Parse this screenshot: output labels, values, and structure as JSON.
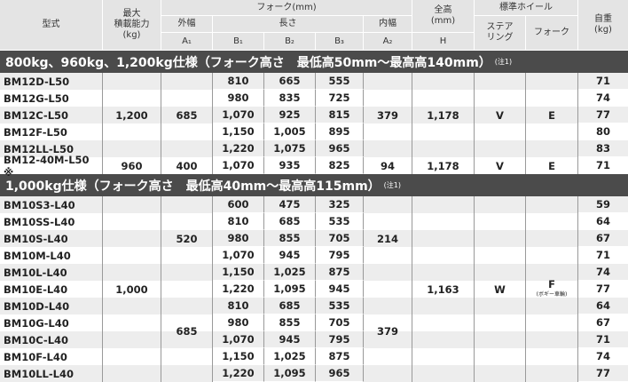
{
  "header": {
    "model": "型式",
    "capacity": "最大\n積載能力\n(kg)",
    "fork": "フォーク(mm)",
    "height": "全高\n(mm)",
    "wheel": "標準ホイール",
    "weight": "自重\n(kg)",
    "outer_width": "外幅",
    "length": "長さ",
    "inner_width": "内幅",
    "steering": "ステア\nリング",
    "fork_wheel": "フォーク",
    "A1": "A₁",
    "B1": "B₁",
    "B2": "B₂",
    "B3": "B₃",
    "A2": "A₂",
    "H": "H"
  },
  "sections": [
    {
      "title": "800kg、960kg、1,200kg仕様（フォーク高さ　最低高50mm～最高高140mm）",
      "note": "(注1)",
      "rows": [
        {
          "model": "BM12D-L50",
          "B1": "810",
          "B2": "665",
          "B3": "555",
          "weight": "71"
        },
        {
          "model": "BM12G-L50",
          "B1": "980",
          "B2": "835",
          "B3": "725",
          "weight": "74"
        },
        {
          "model": "BM12C-L50",
          "B1": "1,070",
          "B2": "925",
          "B3": "815",
          "weight": "77"
        },
        {
          "model": "BM12F-L50",
          "B1": "1,150",
          "B2": "1,005",
          "B3": "895",
          "weight": "80"
        },
        {
          "model": "BM12LL-L50",
          "B1": "1,220",
          "B2": "1,075",
          "B3": "965",
          "weight": "83"
        },
        {
          "model": "BM12-40M-L50 ※",
          "B1": "1,070",
          "B2": "935",
          "B3": "825",
          "weight": "71"
        }
      ],
      "merged": [
        {
          "col": 2,
          "start": 0,
          "span": 5,
          "value": "1,200"
        },
        {
          "col": 3,
          "start": 0,
          "span": 5,
          "value": "685"
        },
        {
          "col": 7,
          "start": 0,
          "span": 5,
          "value": "379"
        },
        {
          "col": 8,
          "start": 0,
          "span": 5,
          "value": "1,178"
        },
        {
          "col": 9,
          "start": 0,
          "span": 5,
          "value": "V"
        },
        {
          "col": 10,
          "start": 0,
          "span": 5,
          "value": "E"
        },
        {
          "col": 2,
          "start": 5,
          "span": 1,
          "value": "960"
        },
        {
          "col": 3,
          "start": 5,
          "span": 1,
          "value": "400"
        },
        {
          "col": 7,
          "start": 5,
          "span": 1,
          "value": "94"
        },
        {
          "col": 8,
          "start": 5,
          "span": 1,
          "value": "1,178"
        },
        {
          "col": 9,
          "start": 5,
          "span": 1,
          "value": "V"
        },
        {
          "col": 10,
          "start": 5,
          "span": 1,
          "value": "E"
        }
      ]
    },
    {
      "title": "1,000kg仕様（フォーク高さ　最低高40mm～最高高115mm）",
      "note": "(注1)",
      "rows": [
        {
          "model": "BM10S3-L40",
          "B1": "600",
          "B2": "475",
          "B3": "325",
          "weight": "59"
        },
        {
          "model": "BM10SS-L40",
          "B1": "810",
          "B2": "685",
          "B3": "535",
          "weight": "64"
        },
        {
          "model": "BM10S-L40",
          "B1": "980",
          "B2": "855",
          "B3": "705",
          "weight": "67"
        },
        {
          "model": "BM10M-L40",
          "B1": "1,070",
          "B2": "945",
          "B3": "795",
          "weight": "71"
        },
        {
          "model": "BM10L-L40",
          "B1": "1,150",
          "B2": "1,025",
          "B3": "875",
          "weight": "74"
        },
        {
          "model": "BM10E-L40",
          "B1": "1,220",
          "B2": "1,095",
          "B3": "945",
          "weight": "77"
        },
        {
          "model": "BM10D-L40",
          "B1": "810",
          "B2": "685",
          "B3": "535",
          "weight": "64"
        },
        {
          "model": "BM10G-L40",
          "B1": "980",
          "B2": "855",
          "B3": "705",
          "weight": "67"
        },
        {
          "model": "BM10C-L40",
          "B1": "1,070",
          "B2": "945",
          "B3": "795",
          "weight": "71"
        },
        {
          "model": "BM10F-L40",
          "B1": "1,150",
          "B2": "1,025",
          "B3": "875",
          "weight": "74"
        },
        {
          "model": "BM10LL-L40",
          "B1": "1,220",
          "B2": "1,095",
          "B3": "965",
          "weight": "77"
        }
      ],
      "merged": [
        {
          "col": 2,
          "start": 0,
          "span": 11,
          "value": "1,000"
        },
        {
          "col": 3,
          "start": 0,
          "span": 5,
          "value": "520"
        },
        {
          "col": 3,
          "start": 5,
          "span": 6,
          "value": "685"
        },
        {
          "col": 7,
          "start": 0,
          "span": 5,
          "value": "214"
        },
        {
          "col": 7,
          "start": 5,
          "span": 6,
          "value": "379"
        },
        {
          "col": 8,
          "start": 0,
          "span": 11,
          "value": "1,163"
        },
        {
          "col": 9,
          "start": 0,
          "span": 11,
          "value": "W"
        },
        {
          "col": 10,
          "start": 0,
          "span": 11,
          "value": "F",
          "sub": "(ボギー車輪)"
        }
      ]
    }
  ]
}
